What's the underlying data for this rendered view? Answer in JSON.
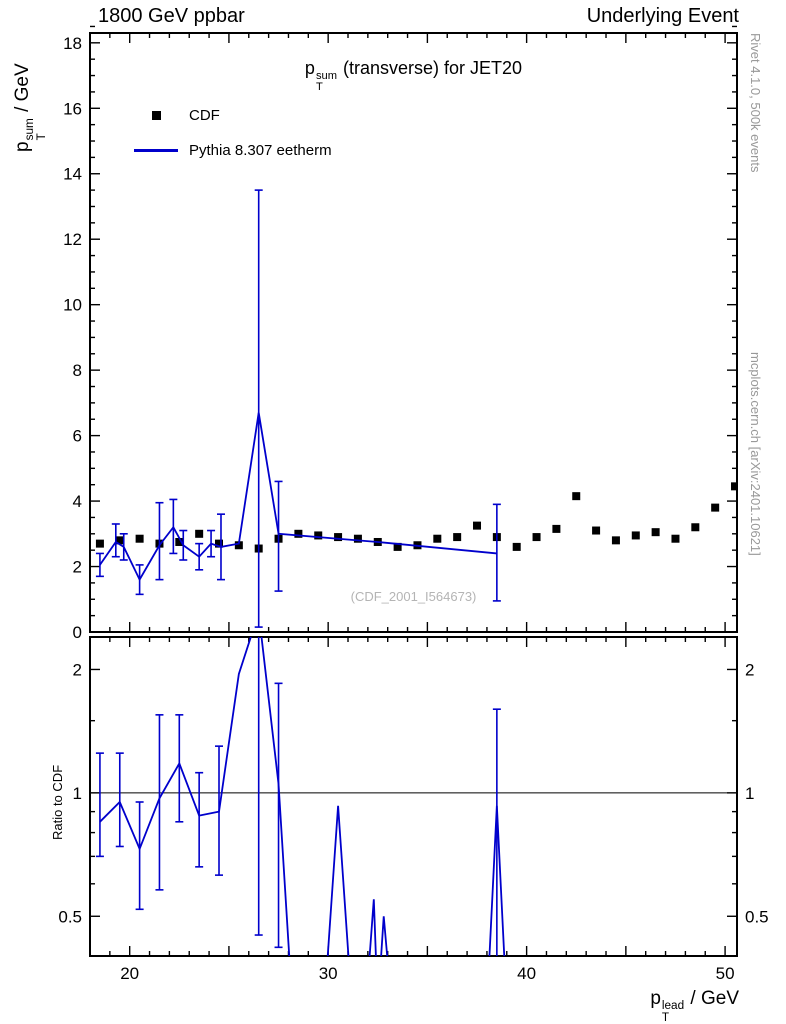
{
  "header": {
    "left": "1800 GeV ppbar",
    "right": "Underlying Event"
  },
  "side_notes": {
    "top": "Rivet 4.1.0, 500k events",
    "bottom": "mcplots.cern.ch [arXiv:2401.10621]"
  },
  "labels": {
    "title_base": "p",
    "title_sup": "sum",
    "title_sub": "T",
    "title_rest": " (transverse) for JET20",
    "ylabel_base": "p",
    "ylabel_sup": "sum",
    "ylabel_sub": "T",
    "ylabel_rest": " / GeV",
    "xlabel_base": "p",
    "xlabel_sup": "lead",
    "xlabel_sub": "T",
    "xlabel_rest": " / GeV",
    "ratio_ylabel": "Ratio to CDF",
    "watermark": "(CDF_2001_I564673)"
  },
  "legend": {
    "cdf": "CDF",
    "pythia": "Pythia 8.307 eetherm"
  },
  "colors": {
    "data": "#000000",
    "mc": "#0000cc",
    "ref_line": "#000000",
    "side_text": "#999999",
    "watermark": "#b4b4b4"
  },
  "chart_data": [
    {
      "type": "scatter",
      "panel": "main",
      "title": "pT^sum (transverse) for JET20",
      "xlabel": "",
      "ylabel": "pT^sum / GeV",
      "xlim": [
        18.0,
        50.6
      ],
      "ylim": [
        0,
        18.3
      ],
      "xticks": {
        "labeled": [
          20,
          30,
          40,
          50
        ],
        "medium": [
          25,
          35,
          45
        ],
        "minor_step": 1
      },
      "yticks": {
        "labeled": [
          0,
          2,
          4,
          6,
          8,
          10,
          12,
          14,
          16,
          18
        ],
        "minor_step": 0.5
      },
      "series": [
        {
          "name": "CDF",
          "style": "marker-square",
          "color": "#000000",
          "x": [
            18.5,
            19.5,
            20.5,
            21.5,
            22.5,
            23.5,
            24.5,
            25.5,
            26.5,
            27.5,
            28.5,
            29.5,
            30.5,
            31.5,
            32.5,
            33.5,
            34.5,
            35.5,
            36.5,
            37.5,
            38.5,
            39.5,
            40.5,
            41.5,
            42.5,
            43.5,
            44.5,
            45.5,
            46.5,
            47.5,
            48.5,
            49.5,
            50.5
          ],
          "y": [
            2.7,
            2.8,
            2.85,
            2.7,
            2.75,
            3.0,
            2.7,
            2.65,
            2.55,
            2.85,
            3.0,
            2.95,
            2.9,
            2.85,
            2.75,
            2.6,
            2.65,
            2.85,
            2.9,
            3.25,
            2.9,
            2.6,
            2.9,
            3.15,
            4.15,
            3.1,
            2.8,
            2.95,
            3.05,
            2.85,
            3.2,
            3.8,
            4.45
          ]
        },
        {
          "name": "Pythia 8.307 eetherm",
          "style": "line-errorbars",
          "color": "#0000cc",
          "x": [
            18.5,
            19.3,
            19.7,
            20.5,
            21.5,
            22.2,
            22.7,
            23.5,
            24.1,
            24.6,
            25.5,
            26.5,
            27.5,
            30.5,
            32.5,
            38.5
          ],
          "y": [
            2.05,
            2.75,
            2.6,
            1.6,
            2.65,
            3.2,
            2.65,
            2.3,
            2.7,
            2.6,
            2.7,
            6.7,
            3.0,
            2.85,
            2.75,
            2.4
          ],
          "ylo": [
            1.7,
            2.3,
            2.2,
            1.15,
            1.6,
            2.4,
            2.2,
            1.9,
            2.3,
            1.6,
            2.7,
            0.15,
            1.25,
            2.85,
            2.75,
            0.95
          ],
          "yhi": [
            2.4,
            3.3,
            3.0,
            2.05,
            3.95,
            4.05,
            3.1,
            2.7,
            3.1,
            3.6,
            2.7,
            13.5,
            4.6,
            2.85,
            2.75,
            3.9
          ]
        }
      ]
    },
    {
      "type": "line",
      "panel": "ratio",
      "ylabel": "Ratio to CDF",
      "xlabel": "pT^lead / GeV",
      "yscale": "log",
      "xlim": [
        18.0,
        50.6
      ],
      "ylim": [
        0.4,
        2.4
      ],
      "ref_line": 1,
      "xticks": {
        "labeled": [
          20,
          30,
          40,
          50
        ],
        "medium": [
          25,
          35,
          45
        ],
        "minor_step": 1
      },
      "yticks": {
        "labeled": [
          0.5,
          1,
          2
        ],
        "minor": [
          0.6,
          0.7,
          0.8,
          0.9,
          1.5
        ]
      },
      "series": [
        {
          "name": "Pythia/CDF",
          "style": "line-errorbars",
          "color": "#0000cc",
          "x": [
            18.5,
            19.5,
            20.5,
            21.5,
            22.5,
            23.5,
            24.5,
            25.5,
            26.5,
            27.5,
            28.2,
            29.8,
            30.5,
            31.2,
            31.9,
            32.3,
            32.5,
            32.8,
            33.2,
            38.0,
            38.5,
            39.0
          ],
          "y": [
            0.85,
            0.95,
            0.73,
            0.97,
            1.18,
            0.88,
            0.9,
            1.95,
            2.75,
            1.05,
            0.3,
            0.3,
            0.93,
            0.3,
            0.3,
            0.55,
            0.3,
            0.5,
            0.3,
            0.3,
            0.93,
            0.3
          ],
          "ylo": [
            0.7,
            0.74,
            0.52,
            0.58,
            0.85,
            0.66,
            0.63,
            1.95,
            0.45,
            0.42,
            null,
            null,
            null,
            null,
            null,
            null,
            null,
            null,
            null,
            null,
            0.32,
            null
          ],
          "yhi": [
            1.25,
            1.25,
            0.95,
            1.55,
            1.55,
            1.12,
            1.3,
            1.95,
            2.75,
            1.85,
            null,
            null,
            null,
            null,
            null,
            null,
            null,
            null,
            null,
            null,
            1.6,
            null
          ]
        }
      ]
    }
  ]
}
